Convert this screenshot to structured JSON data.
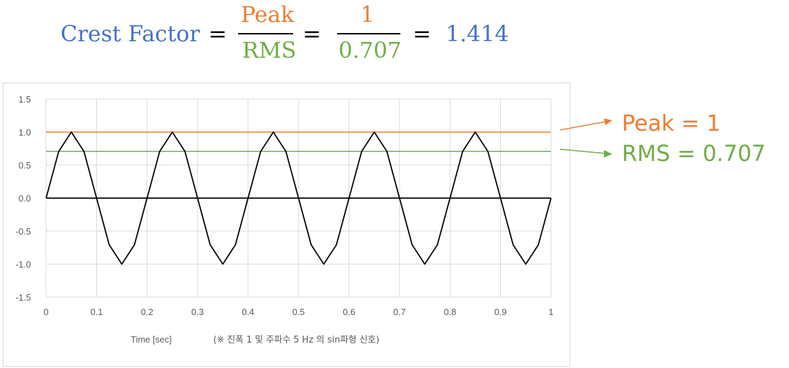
{
  "formula": {
    "lhs": "Crest Factor",
    "eq": "=",
    "numerator": "Peak",
    "denominator": "RMS",
    "num_value": "1",
    "den_value": "0.707",
    "result": "1.414"
  },
  "annotations": {
    "peak": "Peak = 1",
    "rms": "RMS = 0.707"
  },
  "colors": {
    "blue": "#4472c4",
    "orange": "#ed7d31",
    "green": "#70ad47",
    "signal": "#000000",
    "grid": "#d9d9d9"
  },
  "chart_data": {
    "type": "line",
    "xlabel": "Time [sec]",
    "xlabel_note": "(※ 진폭 1 및 주파수 5 Hz 의 sin파형 신호)",
    "xlim": [
      0,
      1
    ],
    "ylim": [
      -1.5,
      1.5
    ],
    "x_ticks": [
      "0",
      "0.1",
      "0.2",
      "0.3",
      "0.4",
      "0.5",
      "0.6",
      "0.7",
      "0.8",
      "0.9",
      "1"
    ],
    "y_ticks": [
      "1.5",
      "1.0",
      "0.5",
      "0.0",
      "-0.5",
      "-1.0",
      "-1.5"
    ],
    "grid": true,
    "signal": {
      "amplitude": 1,
      "frequency_hz": 5,
      "sample_step": 0.025
    },
    "peak_value": 1,
    "rms_value": 0.707
  }
}
